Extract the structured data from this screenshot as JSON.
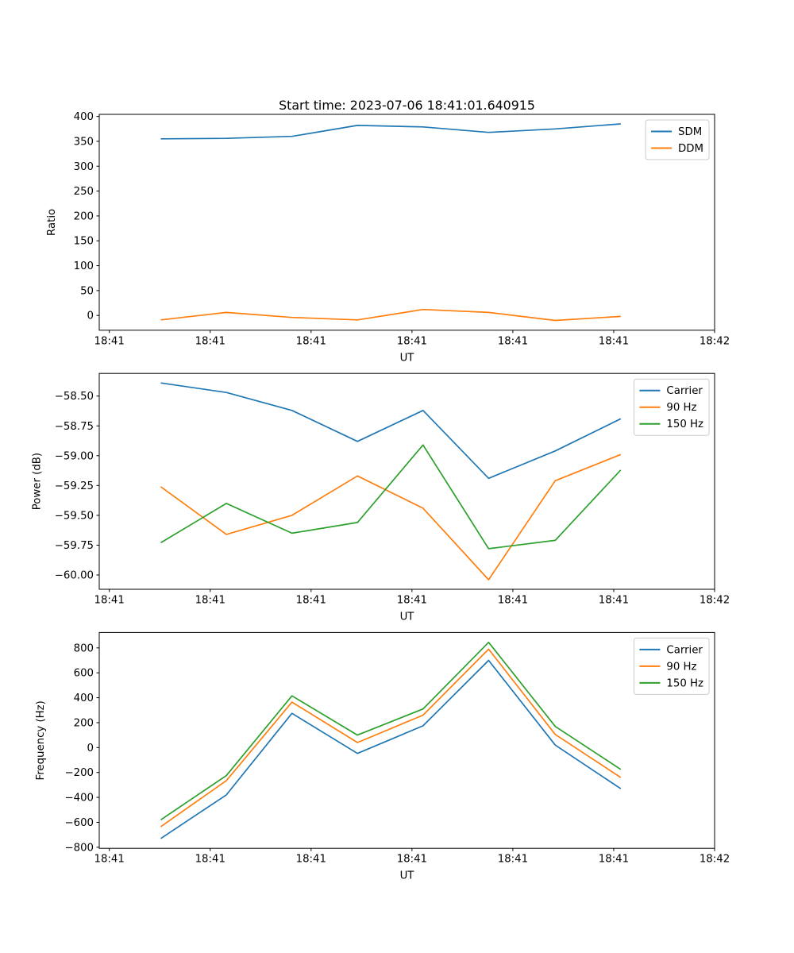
{
  "figure": {
    "background": "#ffffff",
    "axis_color": "#000000",
    "text_color": "#000000",
    "legend_border_color": "#cccccc",
    "palette": {
      "blue": "#1f77b4",
      "orange": "#ff7f0e",
      "green": "#2ca02c"
    }
  },
  "chart_data": [
    {
      "type": "line",
      "title": "Start time: 2023-07-06 18:41:01.640915",
      "xlabel": "UT",
      "ylabel": "Ratio",
      "grid": false,
      "legend_position": "upper right",
      "xlim": [
        -1.0,
        60.0
      ],
      "ylim": [
        -29.7,
        404.2
      ],
      "x_seconds": [
        5.1,
        11.6,
        18.1,
        24.6,
        31.1,
        37.6,
        44.2,
        50.7
      ],
      "xticks": [
        {
          "value": 0,
          "label": "18:41"
        },
        {
          "value": 10,
          "label": "18:41"
        },
        {
          "value": 20,
          "label": "18:41"
        },
        {
          "value": 30,
          "label": "18:41"
        },
        {
          "value": 40,
          "label": "18:41"
        },
        {
          "value": 50,
          "label": "18:41"
        },
        {
          "value": 60,
          "label": "18:42"
        }
      ],
      "yticks": [
        {
          "value": 400,
          "label": "400"
        },
        {
          "value": 350,
          "label": "350"
        },
        {
          "value": 300,
          "label": "300"
        },
        {
          "value": 250,
          "label": "250"
        },
        {
          "value": 200,
          "label": "200"
        },
        {
          "value": 150,
          "label": "150"
        },
        {
          "value": 100,
          "label": "100"
        },
        {
          "value": 50,
          "label": "50"
        },
        {
          "value": 0,
          "label": "0"
        }
      ],
      "series": [
        {
          "name": "SDM",
          "color": "#1f77b4",
          "values": [
            355,
            356,
            360,
            382,
            379,
            368,
            375,
            385
          ]
        },
        {
          "name": "DDM",
          "color": "#ff7f0e",
          "values": [
            -9,
            6,
            -4,
            -9,
            12,
            6,
            -10,
            -2
          ]
        }
      ]
    },
    {
      "type": "line",
      "title": "",
      "xlabel": "UT",
      "ylabel": "Power (dB)",
      "grid": false,
      "legend_position": "upper right",
      "xlim": [
        -1.0,
        60.0
      ],
      "ylim": [
        -60.12,
        -58.31
      ],
      "x_seconds": [
        5.1,
        11.6,
        18.1,
        24.6,
        31.1,
        37.6,
        44.2,
        50.7
      ],
      "xticks": [
        {
          "value": 0,
          "label": "18:41"
        },
        {
          "value": 10,
          "label": "18:41"
        },
        {
          "value": 20,
          "label": "18:41"
        },
        {
          "value": 30,
          "label": "18:41"
        },
        {
          "value": 40,
          "label": "18:41"
        },
        {
          "value": 50,
          "label": "18:41"
        },
        {
          "value": 60,
          "label": "18:42"
        }
      ],
      "yticks": [
        {
          "value": -58.5,
          "label": "−58.50"
        },
        {
          "value": -58.75,
          "label": "−58.75"
        },
        {
          "value": -59.0,
          "label": "−59.00"
        },
        {
          "value": -59.25,
          "label": "−59.25"
        },
        {
          "value": -59.5,
          "label": "−59.50"
        },
        {
          "value": -59.75,
          "label": "−59.75"
        },
        {
          "value": -60.0,
          "label": "−60.00"
        }
      ],
      "series": [
        {
          "name": "Carrier",
          "color": "#1f77b4",
          "values": [
            -58.39,
            -58.47,
            -58.62,
            -58.88,
            -58.62,
            -59.19,
            -58.96,
            -58.69
          ]
        },
        {
          "name": "90 Hz",
          "color": "#ff7f0e",
          "values": [
            -59.26,
            -59.66,
            -59.5,
            -59.17,
            -59.44,
            -60.04,
            -59.21,
            -58.99
          ]
        },
        {
          "name": "150 Hz",
          "color": "#2ca02c",
          "values": [
            -59.73,
            -59.4,
            -59.65,
            -59.56,
            -58.91,
            -59.78,
            -59.71,
            -59.12
          ]
        }
      ]
    },
    {
      "type": "line",
      "title": "",
      "xlabel": "UT",
      "ylabel": "Frequency (Hz)",
      "grid": false,
      "legend_position": "upper right",
      "xlim": [
        -1.0,
        60.0
      ],
      "ylim": [
        -808.75,
        923.75
      ],
      "x_seconds": [
        5.1,
        11.6,
        18.1,
        24.6,
        31.1,
        37.6,
        44.2,
        50.7
      ],
      "xticks": [
        {
          "value": 0,
          "label": "18:41"
        },
        {
          "value": 10,
          "label": "18:41"
        },
        {
          "value": 20,
          "label": "18:41"
        },
        {
          "value": 30,
          "label": "18:41"
        },
        {
          "value": 40,
          "label": "18:41"
        },
        {
          "value": 50,
          "label": "18:41"
        },
        {
          "value": 60,
          "label": "18:42"
        }
      ],
      "yticks": [
        {
          "value": 800,
          "label": "800"
        },
        {
          "value": 600,
          "label": "600"
        },
        {
          "value": 400,
          "label": "400"
        },
        {
          "value": 200,
          "label": "200"
        },
        {
          "value": 0,
          "label": "0"
        },
        {
          "value": -200,
          "label": "−200"
        },
        {
          "value": -400,
          "label": "−400"
        },
        {
          "value": -600,
          "label": "−600"
        },
        {
          "value": -800,
          "label": "−800"
        }
      ],
      "series": [
        {
          "name": "Carrier",
          "color": "#1f77b4",
          "values": [
            -730,
            -380,
            275,
            -47,
            175,
            700,
            20,
            -330
          ]
        },
        {
          "name": "90 Hz",
          "color": "#ff7f0e",
          "values": [
            -635,
            -265,
            365,
            40,
            260,
            790,
            105,
            -240
          ]
        },
        {
          "name": "150 Hz",
          "color": "#2ca02c",
          "values": [
            -580,
            -225,
            415,
            100,
            310,
            845,
            170,
            -175
          ]
        }
      ]
    }
  ]
}
